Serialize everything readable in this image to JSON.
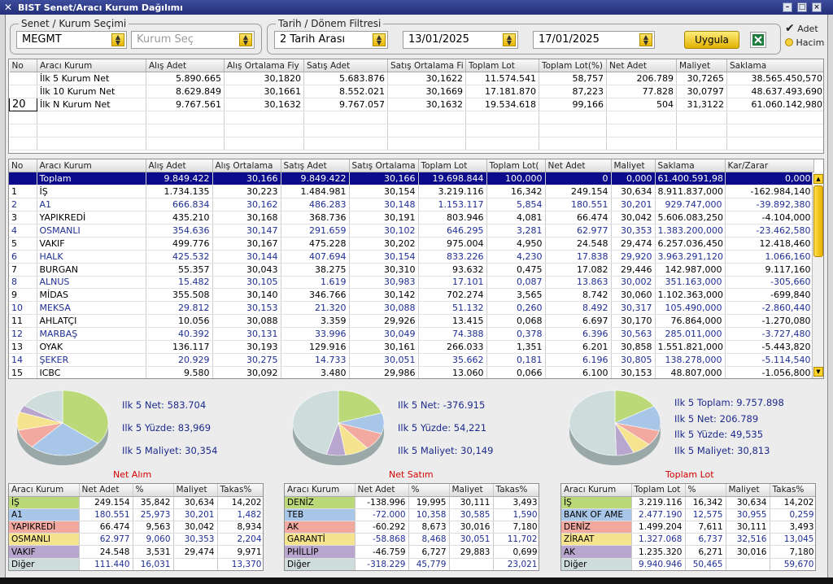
{
  "window": {
    "title": "BIST Senet/Aracı Kurum Dağılımı"
  },
  "filters": {
    "stock_group_label": "Senet / Kurum Seçimi",
    "stock_value": "MEGMT",
    "broker_placeholder": "Kurum Seç",
    "date_group_label": "Tarih / Dönem Filtresi",
    "range_value": "2 Tarih Arası",
    "start_date": "13/01/2025",
    "end_date": "17/01/2025",
    "apply_label": "Uygula",
    "option_adet": "Adet",
    "option_hacim": "Hacim"
  },
  "summary_table": {
    "columns": [
      "No",
      "Aracı Kurum",
      "Alış Adet",
      "Alış Ortalama Fiy",
      "Satış Adet",
      "Satış Ortalama Fi",
      "Toplam Lot",
      "Toplam Lot(%)",
      "Net Adet",
      "Maliyet",
      "Saklama"
    ],
    "rows": [
      [
        "",
        "İlk 5 Kurum Net",
        "5.890.665",
        "30,1820",
        "5.683.876",
        "30,1622",
        "11.574.541",
        "58,757",
        "206.789",
        "30,7265",
        "38.565.450,570"
      ],
      [
        "",
        "İlk 10 Kurum Net",
        "8.629.849",
        "30,1661",
        "8.552.021",
        "30,1669",
        "17.181.870",
        "87,223",
        "77.828",
        "30,0797",
        "48.637.493,690"
      ],
      [
        "20",
        "İlk N Kurum Net",
        "9.767.561",
        "30,1632",
        "9.767.057",
        "30,1632",
        "19.534.618",
        "99,166",
        "504",
        "31,3122",
        "61.060.142,980"
      ]
    ]
  },
  "main_table": {
    "columns": [
      "No",
      "Aracı Kurum",
      "Alış Adet",
      "Alış Ortalama",
      "Satış Adet",
      "Satış Ortalama",
      "Toplam Lot",
      "Toplam Lot(",
      "Net Adet",
      "Maliyet",
      "Saklama",
      "Kar/Zarar"
    ],
    "rows": [
      [
        "",
        "Toplam",
        "9.849.422",
        "30,166",
        "9.849.422",
        "30,166",
        "19.698.844",
        "100,000",
        "0",
        "0,000",
        "61.400.591,98",
        "0,000"
      ],
      [
        "1",
        "İŞ",
        "1.734.135",
        "30,223",
        "1.484.981",
        "30,154",
        "3.219.116",
        "16,342",
        "249.154",
        "30,634",
        "8.911.837,000",
        "-162.984,140"
      ],
      [
        "2",
        "A1",
        "666.834",
        "30,162",
        "486.283",
        "30,148",
        "1.153.117",
        "5,854",
        "180.551",
        "30,201",
        "929.747,000",
        "-39.892,380"
      ],
      [
        "3",
        "YAPIKREDİ",
        "435.210",
        "30,168",
        "368.736",
        "30,191",
        "803.946",
        "4,081",
        "66.474",
        "30,042",
        "5.606.083,250",
        "-4.104,000"
      ],
      [
        "4",
        "OSMANLI",
        "354.636",
        "30,147",
        "291.659",
        "30,102",
        "646.295",
        "3,281",
        "62.977",
        "30,353",
        "1.383.200,000",
        "-23.462,580"
      ],
      [
        "5",
        "VAKIF",
        "499.776",
        "30,167",
        "475.228",
        "30,202",
        "975.004",
        "4,950",
        "24.548",
        "29,474",
        "6.257.036,450",
        "12.418,460"
      ],
      [
        "6",
        "HALK",
        "425.532",
        "30,144",
        "407.694",
        "30,154",
        "833.226",
        "4,230",
        "17.838",
        "29,920",
        "3.963.291,120",
        "1.066,160"
      ],
      [
        "7",
        "BURGAN",
        "55.357",
        "30,043",
        "38.275",
        "30,310",
        "93.632",
        "0,475",
        "17.082",
        "29,446",
        "142.987,000",
        "9.117,160"
      ],
      [
        "8",
        "ALNUS",
        "15.482",
        "30,105",
        "1.619",
        "30,983",
        "17.101",
        "0,087",
        "13.863",
        "30,002",
        "351.163,000",
        "-305,660"
      ],
      [
        "9",
        "MİDAS",
        "355.508",
        "30,140",
        "346.766",
        "30,142",
        "702.274",
        "3,565",
        "8.742",
        "30,060",
        "1.102.363,000",
        "-699,840"
      ],
      [
        "10",
        "MEKSA",
        "29.812",
        "30,153",
        "21.320",
        "30,088",
        "51.132",
        "0,260",
        "8.492",
        "30,317",
        "105.490,000",
        "-2.860,440"
      ],
      [
        "11",
        "AHLATÇI",
        "10.056",
        "30,088",
        "3.359",
        "29,926",
        "13.415",
        "0,068",
        "6.697",
        "30,170",
        "76.864,000",
        "-1.270,080"
      ],
      [
        "12",
        "MARBAŞ",
        "40.392",
        "30,131",
        "33.996",
        "30,049",
        "74.388",
        "0,378",
        "6.396",
        "30,563",
        "285.011,000",
        "-3.727,480"
      ],
      [
        "13",
        "OYAK",
        "136.117",
        "30,193",
        "129.916",
        "30,161",
        "266.033",
        "1,351",
        "6.201",
        "30,858",
        "1.551.821,000",
        "-5.443,820"
      ],
      [
        "14",
        "ŞEKER",
        "20.929",
        "30,275",
        "14.733",
        "30,051",
        "35.662",
        "0,181",
        "6.196",
        "30,805",
        "138.278,000",
        "-5.114,540"
      ],
      [
        "15",
        "ICBC",
        "9.580",
        "30,092",
        "3.480",
        "29,986",
        "13.060",
        "0,066",
        "6.100",
        "30,153",
        "48.807,000",
        "-1.056,800"
      ]
    ]
  },
  "panels": [
    {
      "title": "Net Alım",
      "stats": [
        "Ilk 5 Net: 583.704",
        "Ilk 5 Yüzde: 83,969",
        "Ilk 5 Maliyet: 30,354"
      ],
      "columns": [
        "Aracı Kurum",
        "Net Adet",
        "%",
        "Maliyet",
        "Takas%"
      ],
      "rows": [
        [
          "İŞ",
          "249.154",
          "35,842",
          "30,634",
          "14,202"
        ],
        [
          "A1",
          "180.551",
          "25,973",
          "30,201",
          "1,482"
        ],
        [
          "YAPIKREDİ",
          "66.474",
          "9,563",
          "30,042",
          "8,934"
        ],
        [
          "OSMANLI",
          "62.977",
          "9,060",
          "30,353",
          "2,204"
        ],
        [
          "VAKIF",
          "24.548",
          "3,531",
          "29,474",
          "9,971"
        ],
        [
          "Diğer",
          "111.440",
          "16,031",
          "",
          "13,370"
        ]
      ],
      "pct": [
        35.842,
        25.973,
        9.563,
        9.06,
        3.531,
        16.031
      ]
    },
    {
      "title": "Net Satım",
      "stats": [
        "Ilk 5 Net: -376.915",
        "Ilk 5 Yüzde: 54,221",
        "Ilk 5 Maliyet: 30,149"
      ],
      "columns": [
        "Aracı Kurum",
        "Net Adet",
        "%",
        "Maliyet",
        "Takas%"
      ],
      "rows": [
        [
          "DENİZ",
          "-138.996",
          "19,995",
          "30,111",
          "3,493"
        ],
        [
          "TEB",
          "-72.000",
          "10,358",
          "30,585",
          "1,590"
        ],
        [
          "AK",
          "-60.292",
          "8,673",
          "30,016",
          "7,180"
        ],
        [
          "GARANTİ",
          "-58.868",
          "8,468",
          "30,051",
          "11,702"
        ],
        [
          "PHİLLİP",
          "-46.759",
          "6,727",
          "29,883",
          "0,699"
        ],
        [
          "Diğer",
          "-318.229",
          "45,779",
          "",
          "23,021"
        ]
      ],
      "pct": [
        19.995,
        10.358,
        8.673,
        8.468,
        6.727,
        45.779
      ]
    },
    {
      "title": "Toplam Lot",
      "stats": [
        "Ilk 5 Toplam: 9.757.898",
        "Ilk 5 Net: 206.789",
        "Ilk 5 Yüzde: 49,535",
        "Ilk 5 Maliyet: 30,813"
      ],
      "columns": [
        "Aracı Kurum",
        "Toplam Lot",
        "%",
        "Maliyet",
        "Takas%"
      ],
      "rows": [
        [
          "İŞ",
          "3.219.116",
          "16,342",
          "30,634",
          "14,202"
        ],
        [
          "BANK OF AME",
          "2.477.190",
          "12,575",
          "30,955",
          "0,259"
        ],
        [
          "DENİZ",
          "1.499.204",
          "7,611",
          "30,111",
          "3,493"
        ],
        [
          "ZİRAAT",
          "1.327.068",
          "6,737",
          "32,516",
          "13,045"
        ],
        [
          "AK",
          "1.235.320",
          "6,271",
          "30,016",
          "7,180"
        ],
        [
          "Diğer",
          "9.940.946",
          "50,465",
          "",
          "59,670"
        ]
      ],
      "pct": [
        16.342,
        12.575,
        7.611,
        6.737,
        6.271,
        50.465
      ]
    }
  ],
  "colors": {
    "slice": [
      "#bcd97a",
      "#a8c6e8",
      "#f2a9a0",
      "#f5e38e",
      "#b9a6cf",
      "#cfdcdc"
    ]
  }
}
